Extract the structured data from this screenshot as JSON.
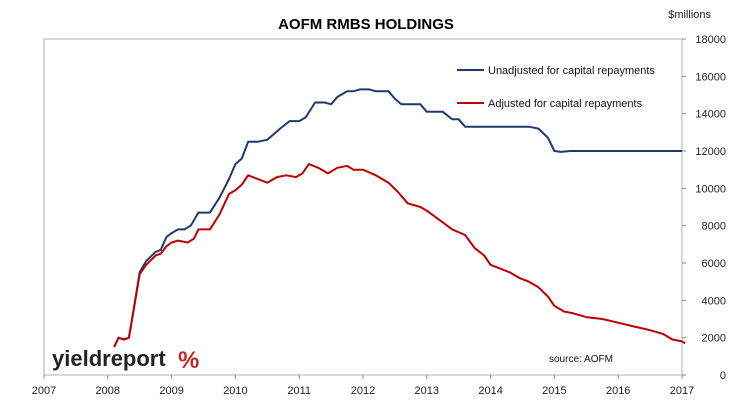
{
  "chart_data": {
    "type": "line",
    "title": "AOFM RMBS HOLDINGS",
    "y_unit_label": "$millions",
    "ylim": [
      0,
      18000
    ],
    "y_ticks": [
      0,
      2000,
      4000,
      6000,
      8000,
      10000,
      12000,
      14000,
      16000,
      18000
    ],
    "xlim": [
      2007,
      2017
    ],
    "x_ticks": [
      "2007",
      "2008",
      "2009",
      "2010",
      "2011",
      "2012",
      "2013",
      "2014",
      "2015",
      "2016",
      "2017"
    ],
    "grid": false,
    "legend_position": "top-right",
    "series": [
      {
        "name": "Unadjusted for capital repayments",
        "color": "#1f3a6e",
        "points": [
          [
            2008.1,
            1500
          ],
          [
            2008.17,
            2000
          ],
          [
            2008.25,
            1900
          ],
          [
            2008.33,
            2000
          ],
          [
            2008.42,
            3800
          ],
          [
            2008.5,
            5500
          ],
          [
            2008.6,
            6100
          ],
          [
            2008.75,
            6600
          ],
          [
            2008.83,
            6700
          ],
          [
            2008.92,
            7400
          ],
          [
            2009.0,
            7600
          ],
          [
            2009.1,
            7800
          ],
          [
            2009.2,
            7800
          ],
          [
            2009.3,
            8000
          ],
          [
            2009.42,
            8700
          ],
          [
            2009.6,
            8700
          ],
          [
            2009.75,
            9500
          ],
          [
            2009.9,
            10500
          ],
          [
            2010.0,
            11300
          ],
          [
            2010.1,
            11600
          ],
          [
            2010.2,
            12500
          ],
          [
            2010.35,
            12500
          ],
          [
            2010.5,
            12600
          ],
          [
            2010.7,
            13200
          ],
          [
            2010.85,
            13600
          ],
          [
            2011.0,
            13600
          ],
          [
            2011.1,
            13800
          ],
          [
            2011.25,
            14600
          ],
          [
            2011.4,
            14600
          ],
          [
            2011.5,
            14500
          ],
          [
            2011.6,
            14900
          ],
          [
            2011.75,
            15200
          ],
          [
            2011.85,
            15200
          ],
          [
            2011.95,
            15300
          ],
          [
            2012.1,
            15300
          ],
          [
            2012.2,
            15200
          ],
          [
            2012.4,
            15200
          ],
          [
            2012.5,
            14800
          ],
          [
            2012.6,
            14500
          ],
          [
            2012.75,
            14500
          ],
          [
            2012.9,
            14500
          ],
          [
            2013.0,
            14100
          ],
          [
            2013.25,
            14100
          ],
          [
            2013.4,
            13700
          ],
          [
            2013.5,
            13700
          ],
          [
            2013.6,
            13300
          ],
          [
            2013.75,
            13300
          ],
          [
            2014.25,
            13300
          ],
          [
            2014.6,
            13300
          ],
          [
            2014.75,
            13200
          ],
          [
            2014.9,
            12700
          ],
          [
            2015.0,
            12000
          ],
          [
            2015.1,
            11950
          ],
          [
            2015.25,
            12000
          ],
          [
            2016.0,
            12000
          ],
          [
            2017.0,
            12000
          ]
        ]
      },
      {
        "name": "Adjusted for capital repayments",
        "color": "#c00000",
        "points": [
          [
            2008.1,
            1500
          ],
          [
            2008.17,
            2000
          ],
          [
            2008.25,
            1900
          ],
          [
            2008.33,
            2000
          ],
          [
            2008.42,
            3800
          ],
          [
            2008.5,
            5400
          ],
          [
            2008.6,
            5900
          ],
          [
            2008.75,
            6400
          ],
          [
            2008.83,
            6500
          ],
          [
            2008.92,
            6900
          ],
          [
            2009.0,
            7100
          ],
          [
            2009.1,
            7200
          ],
          [
            2009.25,
            7100
          ],
          [
            2009.35,
            7300
          ],
          [
            2009.42,
            7800
          ],
          [
            2009.6,
            7800
          ],
          [
            2009.75,
            8600
          ],
          [
            2009.9,
            9700
          ],
          [
            2010.0,
            9900
          ],
          [
            2010.1,
            10200
          ],
          [
            2010.2,
            10700
          ],
          [
            2010.35,
            10500
          ],
          [
            2010.5,
            10300
          ],
          [
            2010.65,
            10600
          ],
          [
            2010.8,
            10700
          ],
          [
            2010.95,
            10600
          ],
          [
            2011.05,
            10800
          ],
          [
            2011.15,
            11300
          ],
          [
            2011.3,
            11100
          ],
          [
            2011.45,
            10800
          ],
          [
            2011.6,
            11100
          ],
          [
            2011.75,
            11200
          ],
          [
            2011.85,
            11000
          ],
          [
            2012.0,
            11000
          ],
          [
            2012.2,
            10700
          ],
          [
            2012.4,
            10300
          ],
          [
            2012.55,
            9800
          ],
          [
            2012.7,
            9200
          ],
          [
            2012.9,
            9000
          ],
          [
            2013.0,
            8800
          ],
          [
            2013.2,
            8300
          ],
          [
            2013.4,
            7800
          ],
          [
            2013.6,
            7500
          ],
          [
            2013.75,
            6800
          ],
          [
            2013.9,
            6400
          ],
          [
            2014.0,
            5900
          ],
          [
            2014.15,
            5700
          ],
          [
            2014.3,
            5500
          ],
          [
            2014.45,
            5200
          ],
          [
            2014.6,
            5000
          ],
          [
            2014.75,
            4700
          ],
          [
            2014.9,
            4200
          ],
          [
            2015.0,
            3700
          ],
          [
            2015.15,
            3400
          ],
          [
            2015.3,
            3300
          ],
          [
            2015.5,
            3100
          ],
          [
            2015.75,
            3000
          ],
          [
            2016.0,
            2800
          ],
          [
            2016.25,
            2600
          ],
          [
            2016.5,
            2400
          ],
          [
            2016.7,
            2200
          ],
          [
            2016.85,
            1900
          ],
          [
            2017.0,
            1800
          ],
          [
            2017.05,
            1700
          ]
        ]
      }
    ],
    "annotations": [
      "source: AOFM"
    ]
  },
  "branding": {
    "logo_text": "yieldreport",
    "logo_symbol": "%",
    "logo_symbol_colors": [
      "#2e7d32",
      "#c62828"
    ]
  }
}
